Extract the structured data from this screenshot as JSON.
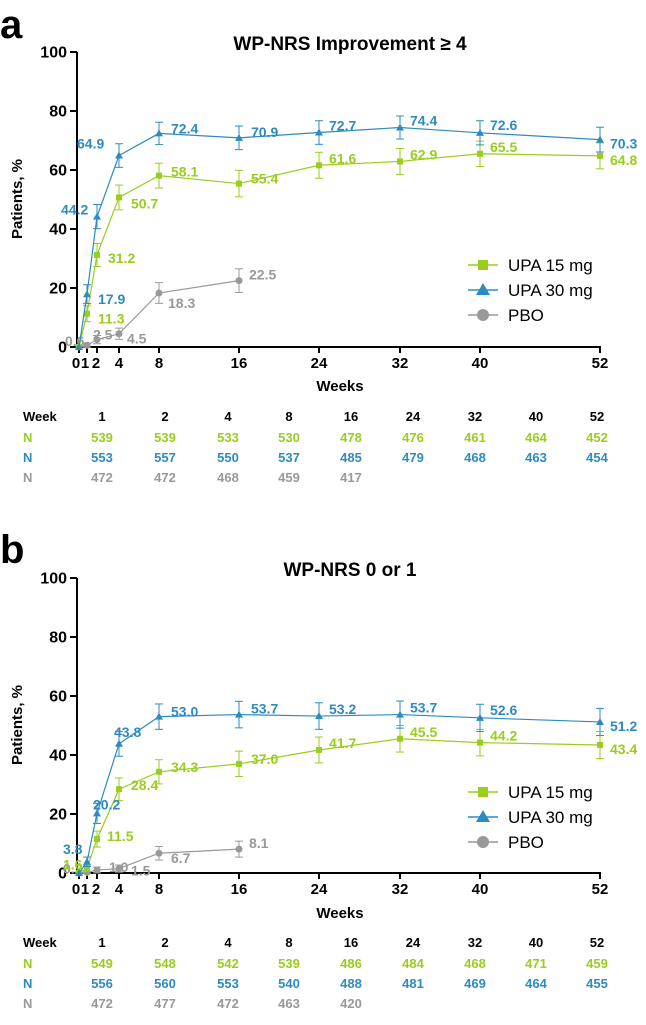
{
  "colors": {
    "upa15": "#9ACD1E",
    "upa30": "#2E8BC0",
    "pbo": "#999999",
    "axis": "#000000"
  },
  "chart_data": [
    {
      "type": "line",
      "panel_label": "a",
      "title": "WP-NRS Improvement ≥ 4",
      "xlabel": "Weeks",
      "ylabel": "Patients, %",
      "ylim": [
        0,
        100
      ],
      "yticks": [
        "0",
        "20",
        "40",
        "60",
        "80",
        "100"
      ],
      "xticks": [
        "0",
        "1",
        "2",
        "4",
        "8",
        "16",
        "24",
        "32",
        "40",
        "52"
      ],
      "legend": [
        "UPA 15 mg",
        "UPA 30 mg",
        "PBO"
      ],
      "series": [
        {
          "name": "UPA 15 mg",
          "key": "upa15",
          "x": [
            0,
            1,
            2,
            4,
            8,
            16,
            24,
            32,
            40,
            52
          ],
          "y": [
            0,
            11.3,
            31.2,
            50.7,
            58.1,
            55.4,
            61.6,
            62.9,
            65.5,
            64.8
          ],
          "err": [
            0,
            2.7,
            3.9,
            4.2,
            4.2,
            4.5,
            4.4,
            4.4,
            4.3,
            4.4
          ],
          "labels": [
            "",
            "11.3",
            "31.2",
            "50.7",
            "58.1",
            "55.4",
            "61.6",
            "62.9",
            "65.5",
            "64.8"
          ]
        },
        {
          "name": "UPA 30 mg",
          "key": "upa30",
          "x": [
            0,
            1,
            2,
            4,
            8,
            16,
            24,
            32,
            40,
            52
          ],
          "y": [
            0,
            17.9,
            44.2,
            64.9,
            72.4,
            70.9,
            72.7,
            74.4,
            72.6,
            70.3
          ],
          "err": [
            0,
            3.2,
            4.1,
            4.0,
            3.8,
            4.0,
            4.0,
            3.9,
            4.1,
            4.2
          ],
          "labels": [
            "",
            "17.9",
            "44.2",
            "64.9",
            "72.4",
            "70.9",
            "72.7",
            "74.4",
            "72.6",
            "70.3"
          ]
        },
        {
          "name": "PBO",
          "key": "pbo",
          "x": [
            0,
            1,
            2,
            4,
            8,
            16
          ],
          "y": [
            0,
            0.6,
            2.5,
            4.5,
            18.3,
            22.5
          ],
          "err": [
            0,
            0.7,
            1.4,
            1.9,
            3.5,
            4.0
          ],
          "labels": [
            "",
            "0.6",
            "2.5",
            "4.5",
            "18.3",
            "22.5"
          ]
        }
      ],
      "n_table": {
        "header": [
          "Week",
          "1",
          "2",
          "4",
          "8",
          "16",
          "24",
          "32",
          "40",
          "52"
        ],
        "rows": [
          {
            "key": "upa15",
            "label": "N",
            "values": [
              "539",
              "539",
              "533",
              "530",
              "478",
              "476",
              "461",
              "464",
              "452"
            ]
          },
          {
            "key": "upa30",
            "label": "N",
            "values": [
              "553",
              "557",
              "550",
              "537",
              "485",
              "479",
              "468",
              "463",
              "454"
            ]
          },
          {
            "key": "pbo",
            "label": "N",
            "values": [
              "472",
              "472",
              "468",
              "459",
              "417",
              "",
              "",
              "",
              ""
            ]
          }
        ]
      }
    },
    {
      "type": "line",
      "panel_label": "b",
      "title": "WP-NRS 0 or 1",
      "xlabel": "Weeks",
      "ylabel": "Patients, %",
      "ylim": [
        0,
        100
      ],
      "yticks": [
        "0",
        "20",
        "40",
        "60",
        "80",
        "100"
      ],
      "xticks": [
        "0",
        "1",
        "2",
        "4",
        "8",
        "16",
        "24",
        "32",
        "40",
        "52"
      ],
      "legend": [
        "UPA 15 mg",
        "UPA 30 mg",
        "PBO"
      ],
      "series": [
        {
          "name": "UPA 15 mg",
          "key": "upa15",
          "x": [
            0,
            1,
            2,
            4,
            8,
            16,
            24,
            32,
            40,
            52
          ],
          "y": [
            0,
            1.6,
            11.5,
            28.4,
            34.3,
            37.0,
            41.7,
            45.5,
            44.2,
            43.4
          ],
          "err": [
            0,
            1.1,
            2.7,
            3.8,
            4.1,
            4.3,
            4.4,
            4.5,
            4.5,
            4.6
          ],
          "labels": [
            "",
            "1.6",
            "11.5",
            "28.4",
            "34.3",
            "37.0",
            "41.7",
            "45.5",
            "44.2",
            "43.4"
          ]
        },
        {
          "name": "UPA 30 mg",
          "key": "upa30",
          "x": [
            0,
            1,
            2,
            4,
            8,
            16,
            24,
            32,
            40,
            52
          ],
          "y": [
            0,
            3.8,
            20.2,
            43.8,
            53.0,
            53.7,
            53.2,
            53.7,
            52.6,
            51.2
          ],
          "err": [
            0,
            1.6,
            3.4,
            4.2,
            4.3,
            4.5,
            4.5,
            4.6,
            4.6,
            4.6
          ],
          "labels": [
            "",
            "3.8",
            "20.2",
            "43.8",
            "53.0",
            "53.7",
            "53.2",
            "53.7",
            "52.6",
            "51.2"
          ]
        },
        {
          "name": "PBO",
          "key": "pbo",
          "x": [
            0,
            1,
            2,
            4,
            8,
            16
          ],
          "y": [
            0,
            0.2,
            1.0,
            1.5,
            6.7,
            8.1
          ],
          "err": [
            0,
            0.4,
            1.0,
            1.2,
            2.3,
            2.7
          ],
          "labels": [
            "",
            "0.2",
            "1.0",
            "1.5",
            "6.7",
            "8.1"
          ]
        }
      ],
      "n_table": {
        "header": [
          "Week",
          "1",
          "2",
          "4",
          "8",
          "16",
          "24",
          "32",
          "40",
          "52"
        ],
        "rows": [
          {
            "key": "upa15",
            "label": "N",
            "values": [
              "549",
              "548",
              "542",
              "539",
              "486",
              "484",
              "468",
              "471",
              "459"
            ]
          },
          {
            "key": "upa30",
            "label": "N",
            "values": [
              "556",
              "560",
              "553",
              "540",
              "488",
              "481",
              "469",
              "464",
              "455"
            ]
          },
          {
            "key": "pbo",
            "label": "N",
            "values": [
              "472",
              "477",
              "472",
              "463",
              "420",
              "",
              "",
              "",
              ""
            ]
          }
        ]
      }
    }
  ]
}
